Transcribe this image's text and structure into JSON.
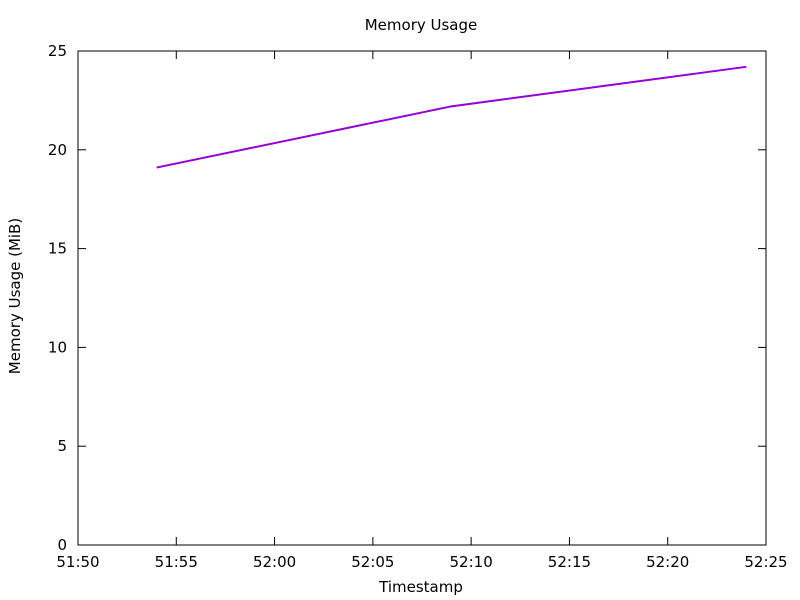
{
  "chart_data": {
    "type": "line",
    "title": "Memory Usage",
    "xlabel": "Timestamp",
    "ylabel": "Memory Usage (MiB)",
    "x_ticks": [
      "51:50",
      "51:55",
      "52:00",
      "52:05",
      "52:10",
      "52:15",
      "52:20",
      "52:25"
    ],
    "y_ticks": [
      "0",
      "5",
      "10",
      "15",
      "20",
      "25"
    ],
    "xlim": [
      "51:50",
      "52:25"
    ],
    "ylim": [
      0,
      25
    ],
    "grid": false,
    "legend": "none",
    "series": [
      {
        "x": [
          "51:54",
          "52:09",
          "52:24"
        ],
        "y": [
          19.1,
          22.2,
          24.2
        ],
        "color": "#9400d3"
      }
    ],
    "colors": {
      "line": "#9400d3",
      "axes": "#000000",
      "background": "#ffffff"
    }
  }
}
